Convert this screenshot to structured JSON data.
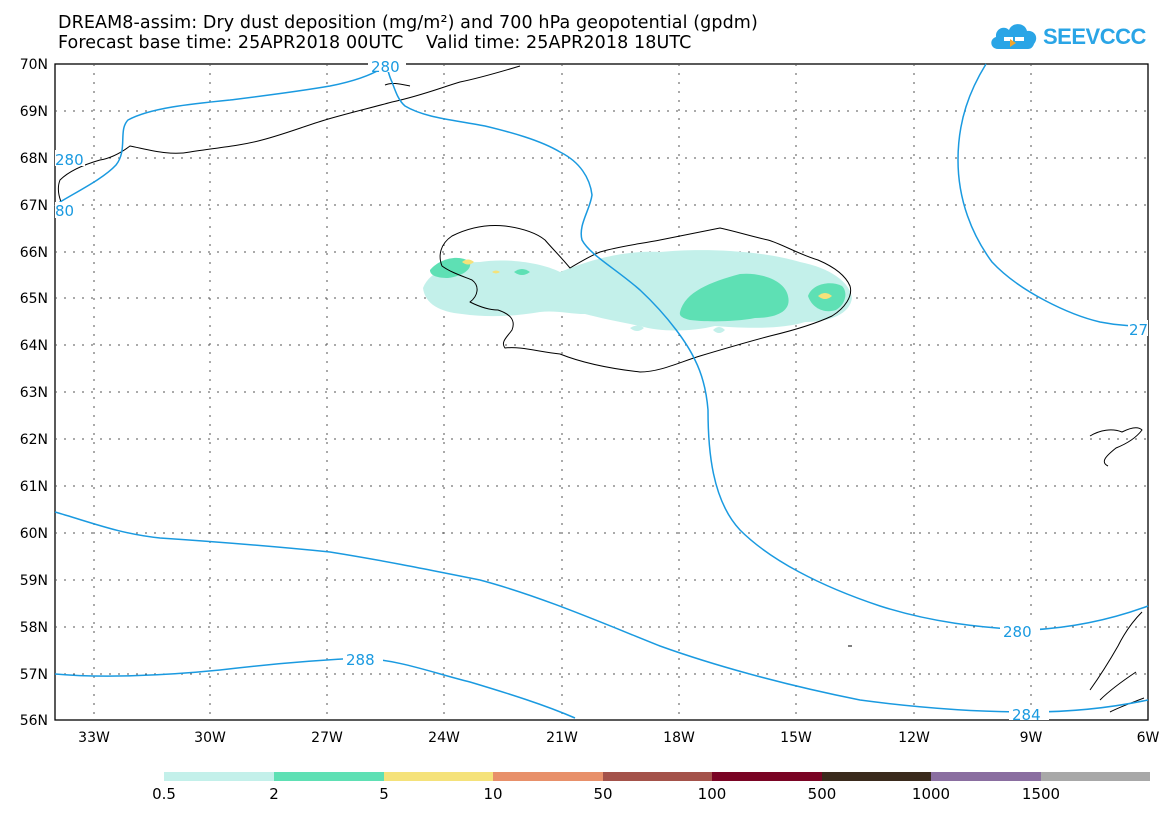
{
  "title": {
    "line1": "DREAM8-assim: Dry dust deposition (mg/m²) and 700 hPa geopotential (gpdm)",
    "line2": "Forecast base time: 25APR2018 00UTC    Valid time: 25APR2018 18UTC"
  },
  "logo": {
    "text": "SEEVCCC",
    "icon": "cloud-icon",
    "color": "#2aa5e6"
  },
  "map": {
    "lat_labels": [
      "70N",
      "69N",
      "68N",
      "67N",
      "66N",
      "65N",
      "64N",
      "63N",
      "62N",
      "61N",
      "60N",
      "59N",
      "58N",
      "57N",
      "56N"
    ],
    "lon_labels": [
      "33W",
      "30W",
      "27W",
      "24W",
      "21W",
      "18W",
      "15W",
      "12W",
      "9W",
      "6W"
    ],
    "contour_labels": [
      "280",
      "280",
      "80",
      "288",
      "280",
      "284",
      "27"
    ],
    "contour_color": "#1a9ae0",
    "coast_color": "#000000"
  },
  "legend": {
    "thresholds": [
      "0.5",
      "2",
      "5",
      "10",
      "50",
      "100",
      "500",
      "1000",
      "1500"
    ],
    "colors": [
      "#c3f0ea",
      "#5ee0b4",
      "#f5e27a",
      "#e8906a",
      "#a4524a",
      "#7a0424",
      "#3a2a1c",
      "#8a6ea0",
      "#a8a8a8"
    ]
  }
}
